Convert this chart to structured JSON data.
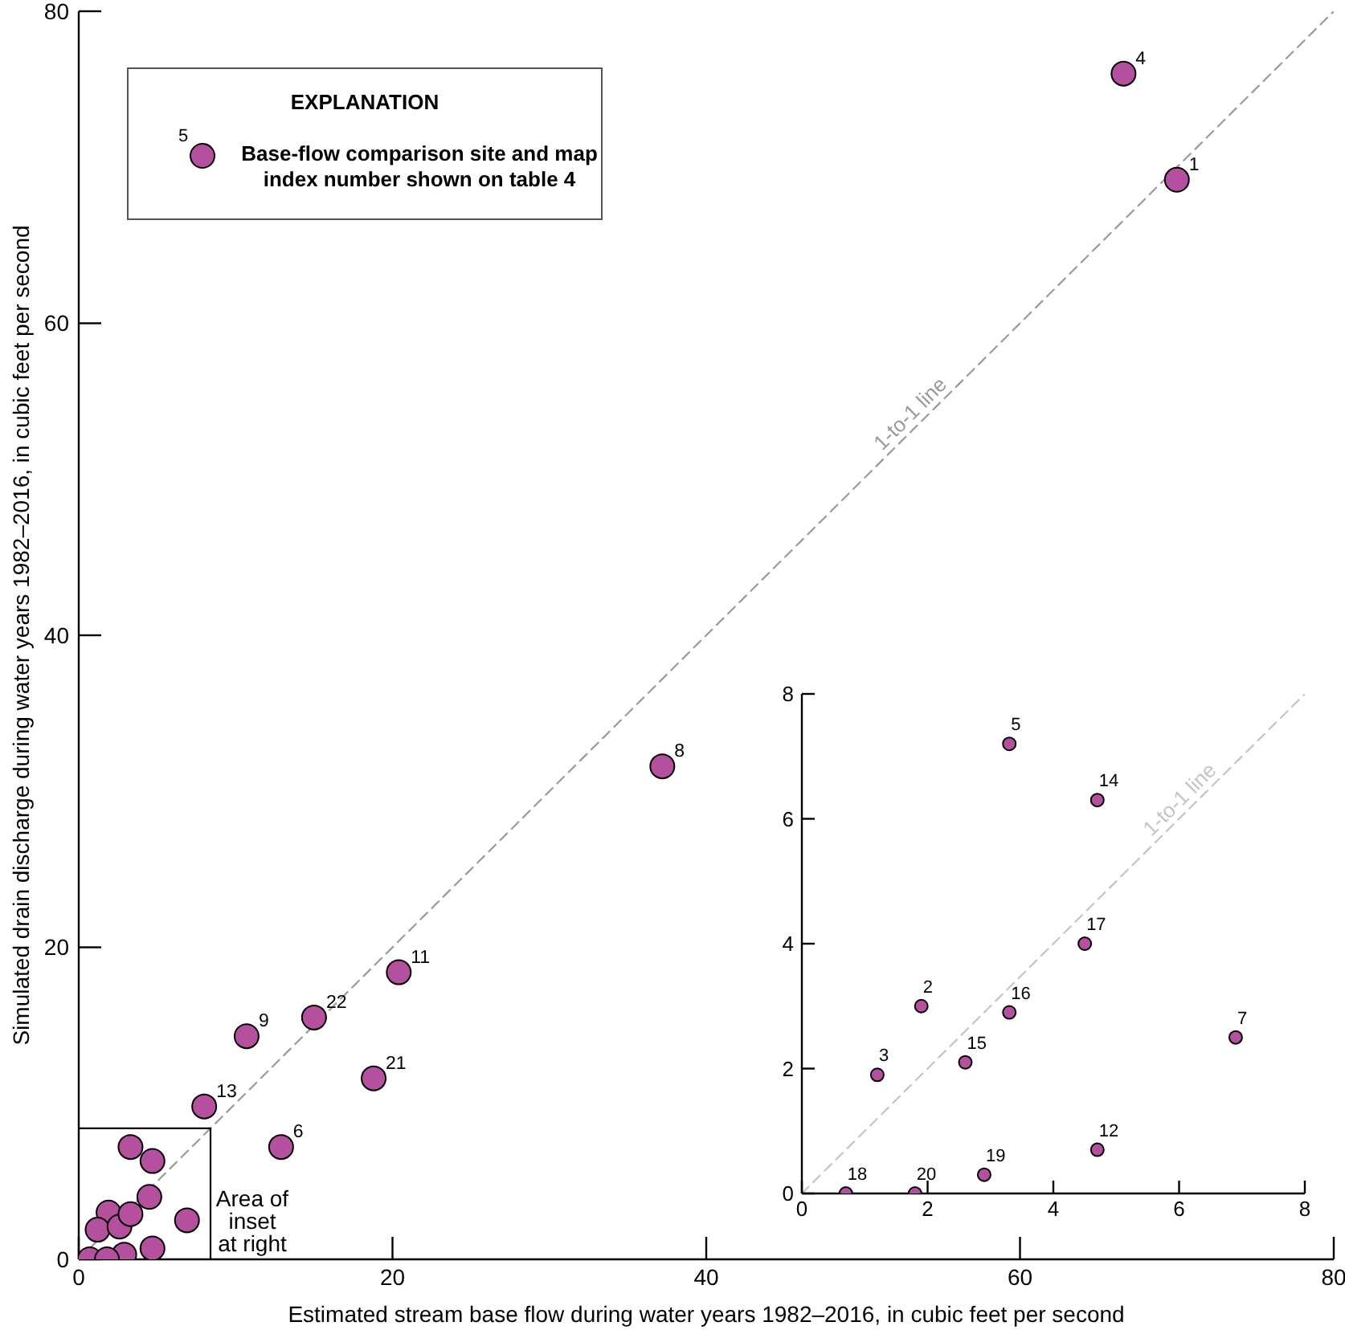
{
  "chart_data": [
    {
      "type": "scatter",
      "xlabel": "Estimated stream base flow during water years 1982–2016, in cubic feet per second",
      "ylabel": "Simulated drain discharge during water years 1982–2016, in cubic feet per second",
      "xlim": [
        0,
        80
      ],
      "ylim": [
        0,
        80
      ],
      "xticks": [
        0,
        20,
        40,
        60,
        80
      ],
      "yticks": [
        0,
        20,
        40,
        60,
        80
      ],
      "legend": "top left",
      "legend_title": "EXPLANATION",
      "annotations": [
        "5",
        {
          "text": "1",
          "x": 70.0,
          "y": 69.2
        },
        {
          "text": "4",
          "x": 66.6,
          "y": 76.0
        },
        {
          "text": "6",
          "x": 12.9,
          "y": 7.2
        },
        {
          "text": "8",
          "x": 37.2,
          "y": 31.6
        },
        {
          "text": "9",
          "x": 10.7,
          "y": 14.3
        },
        {
          "text": "11",
          "x": 20.4,
          "y": 18.4
        },
        {
          "text": "13",
          "x": 8.0,
          "y": 9.8
        },
        {
          "text": "21",
          "x": 18.8,
          "y": 11.6
        },
        {
          "text": "22",
          "x": 15.0,
          "y": 15.5
        }
      ],
      "series": [
        {
          "name": "Base-flow comparison site and map index number shown on table 4",
          "color": "#b5509f",
          "marker": "circle",
          "x": [
            70.0,
            1.9,
            1.2,
            66.6,
            3.3,
            12.9,
            6.9,
            37.2,
            10.7,
            20.4,
            4.7,
            8.0,
            4.7,
            2.6,
            3.3,
            4.5,
            0.7,
            2.9,
            1.8,
            18.8,
            15.0
          ],
          "values": [
            69.2,
            3.0,
            1.9,
            76.0,
            7.2,
            7.2,
            2.5,
            31.6,
            14.3,
            18.4,
            0.7,
            9.8,
            6.3,
            2.1,
            2.9,
            4.0,
            0,
            0.3,
            0,
            11.6,
            15.5
          ]
        },
        {
          "type": "line",
          "name": "1-to-1 line",
          "color": "#9a9a9a",
          "line_style": "dashed",
          "marker": "none",
          "x": [
            0,
            80
          ],
          "values": [
            0,
            80
          ]
        },
        {
          "type": "line",
          "name": "Area of inset at right",
          "color": "#000000",
          "line_style": "solid",
          "marker": "none",
          "x": [
            0,
            8.4,
            8.4
          ],
          "values": [
            8.4,
            8.4,
            0
          ]
        }
      ]
    },
    {
      "type": "scatter",
      "xlim": [
        0,
        8
      ],
      "ylim": [
        0,
        8
      ],
      "xticks": [
        0,
        2,
        4,
        6,
        8
      ],
      "yticks": [
        0,
        2,
        4,
        6,
        8
      ],
      "annotations": [
        {
          "text": "2",
          "x": 1.9,
          "y": 3.0
        },
        {
          "text": "3",
          "x": 1.2,
          "y": 1.9
        },
        {
          "text": "5",
          "x": 3.3,
          "y": 7.2
        },
        {
          "text": "7",
          "x": 6.9,
          "y": 2.5
        },
        {
          "text": "12",
          "x": 4.7,
          "y": 0.7
        },
        {
          "text": "14",
          "x": 4.7,
          "y": 6.3
        },
        {
          "text": "15",
          "x": 2.6,
          "y": 2.1
        },
        {
          "text": "16",
          "x": 3.3,
          "y": 2.9
        },
        {
          "text": "17",
          "x": 4.5,
          "y": 4.0
        },
        {
          "text": "18",
          "x": 0.7,
          "y": 0
        },
        {
          "text": "19",
          "x": 2.9,
          "y": 0.3
        },
        {
          "text": "20",
          "x": 1.8,
          "y": 0
        }
      ],
      "series": [
        {
          "color": "#b5509f",
          "marker": "circle",
          "x": [
            1.9,
            1.2,
            3.3,
            6.9,
            4.7,
            4.7,
            2.6,
            3.3,
            4.5,
            0.7,
            2.9,
            1.8
          ],
          "values": [
            3.0,
            1.9,
            7.2,
            2.5,
            0.7,
            6.3,
            2.1,
            2.9,
            4.0,
            0,
            0.3,
            0
          ]
        },
        {
          "type": "line",
          "name": "1-to-1 line",
          "color": "#c4c4c4",
          "line_style": "dashed",
          "marker": "none",
          "x": [
            0,
            8
          ],
          "values": [
            0,
            8
          ]
        }
      ]
    }
  ]
}
